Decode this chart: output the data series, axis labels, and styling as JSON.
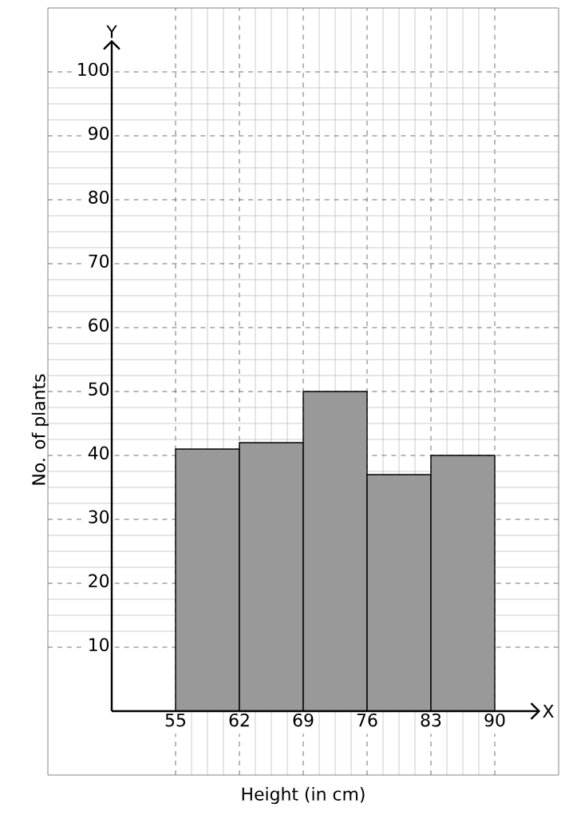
{
  "chart_data": {
    "type": "histogram",
    "xlabel": "Height (in cm)",
    "ylabel": "No. of plants",
    "annotations": [
      "X",
      "Y"
    ],
    "bins": [
      55,
      62,
      69,
      76,
      83,
      90
    ],
    "values": [
      41,
      42,
      50,
      37,
      40
    ],
    "color": "#999999",
    "xlim": [
      41,
      97
    ],
    "ylim": [
      -10,
      110
    ],
    "xticks": [
      55,
      62,
      69,
      76,
      83,
      90
    ],
    "yticks": [
      10,
      20,
      30,
      40,
      50,
      60,
      70,
      80,
      90,
      100
    ],
    "grid": true
  }
}
